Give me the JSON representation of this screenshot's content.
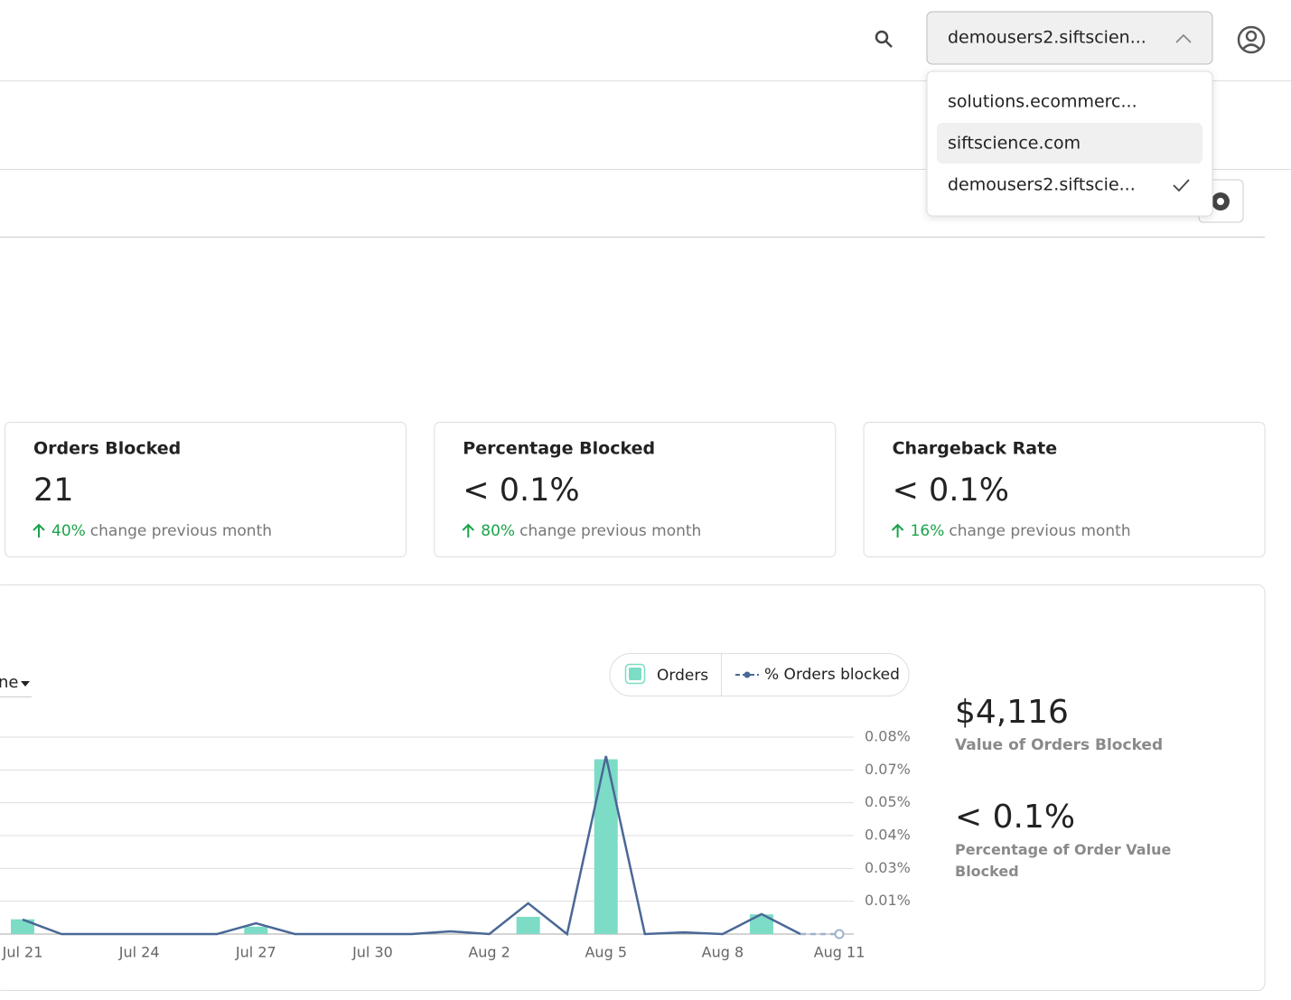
{
  "header": {
    "account": "demousers2.siftscien...",
    "menu": [
      "solutions.ecommerc...",
      "siftscience.com",
      "demousers2.siftscie..."
    ]
  },
  "filter": "ne",
  "cards": [
    {
      "title": "Orders Blocked",
      "value": "21",
      "change": "40%",
      "note": "change previous month"
    },
    {
      "title": "Percentage Blocked",
      "value": "< 0.1%",
      "change": "80%",
      "note": "change previous month"
    },
    {
      "title": "Chargeback Rate",
      "value": "< 0.1%",
      "change": "16%",
      "note": "change previous month"
    }
  ],
  "summary": [
    {
      "value": "$4,116",
      "label": "Value of Orders Blocked"
    },
    {
      "value": "< 0.1%",
      "label": "Percentage of Order Value Blocked"
    }
  ],
  "chart_data": {
    "type": "combo",
    "categories": [
      "Jul 21",
      null,
      null,
      "Jul 24",
      null,
      null,
      "Jul 27",
      null,
      null,
      "Jul 30",
      null,
      null,
      "Aug 2",
      null,
      null,
      "Aug 5",
      null,
      null,
      "Aug 8",
      null,
      null,
      "Aug 11"
    ],
    "series": [
      {
        "name": "Orders",
        "type": "bar",
        "color": "#7ddcc6",
        "values": [
          6,
          0,
          0,
          0,
          0,
          0,
          3,
          0,
          0,
          0,
          0,
          0,
          0,
          7,
          0,
          71,
          0,
          0,
          0,
          8,
          0,
          0
        ]
      },
      {
        "name": "% Orders blocked",
        "type": "line",
        "axis": "y2",
        "color": "#4a6896",
        "values": [
          0.0059,
          0,
          0,
          0,
          0,
          0,
          0.0044,
          0,
          0,
          0,
          0,
          0.0011,
          0,
          0.0125,
          0,
          0.0723,
          0,
          0.0007,
          0,
          0.0081,
          0,
          0
        ]
      }
    ],
    "ylim": [
      0,
      80
    ],
    "y2lim": [
      0,
      0.08
    ],
    "y2ticks": [
      {
        "value": 0.013333,
        "label": "0.01%"
      },
      {
        "value": 0.026667,
        "label": "0.03%"
      },
      {
        "value": 0.04,
        "label": "0.04%"
      },
      {
        "value": 0.053333,
        "label": "0.05%"
      },
      {
        "value": 0.066667,
        "label": "0.07%"
      },
      {
        "value": 0.08,
        "label": "0.08%"
      }
    ],
    "grid": true
  }
}
